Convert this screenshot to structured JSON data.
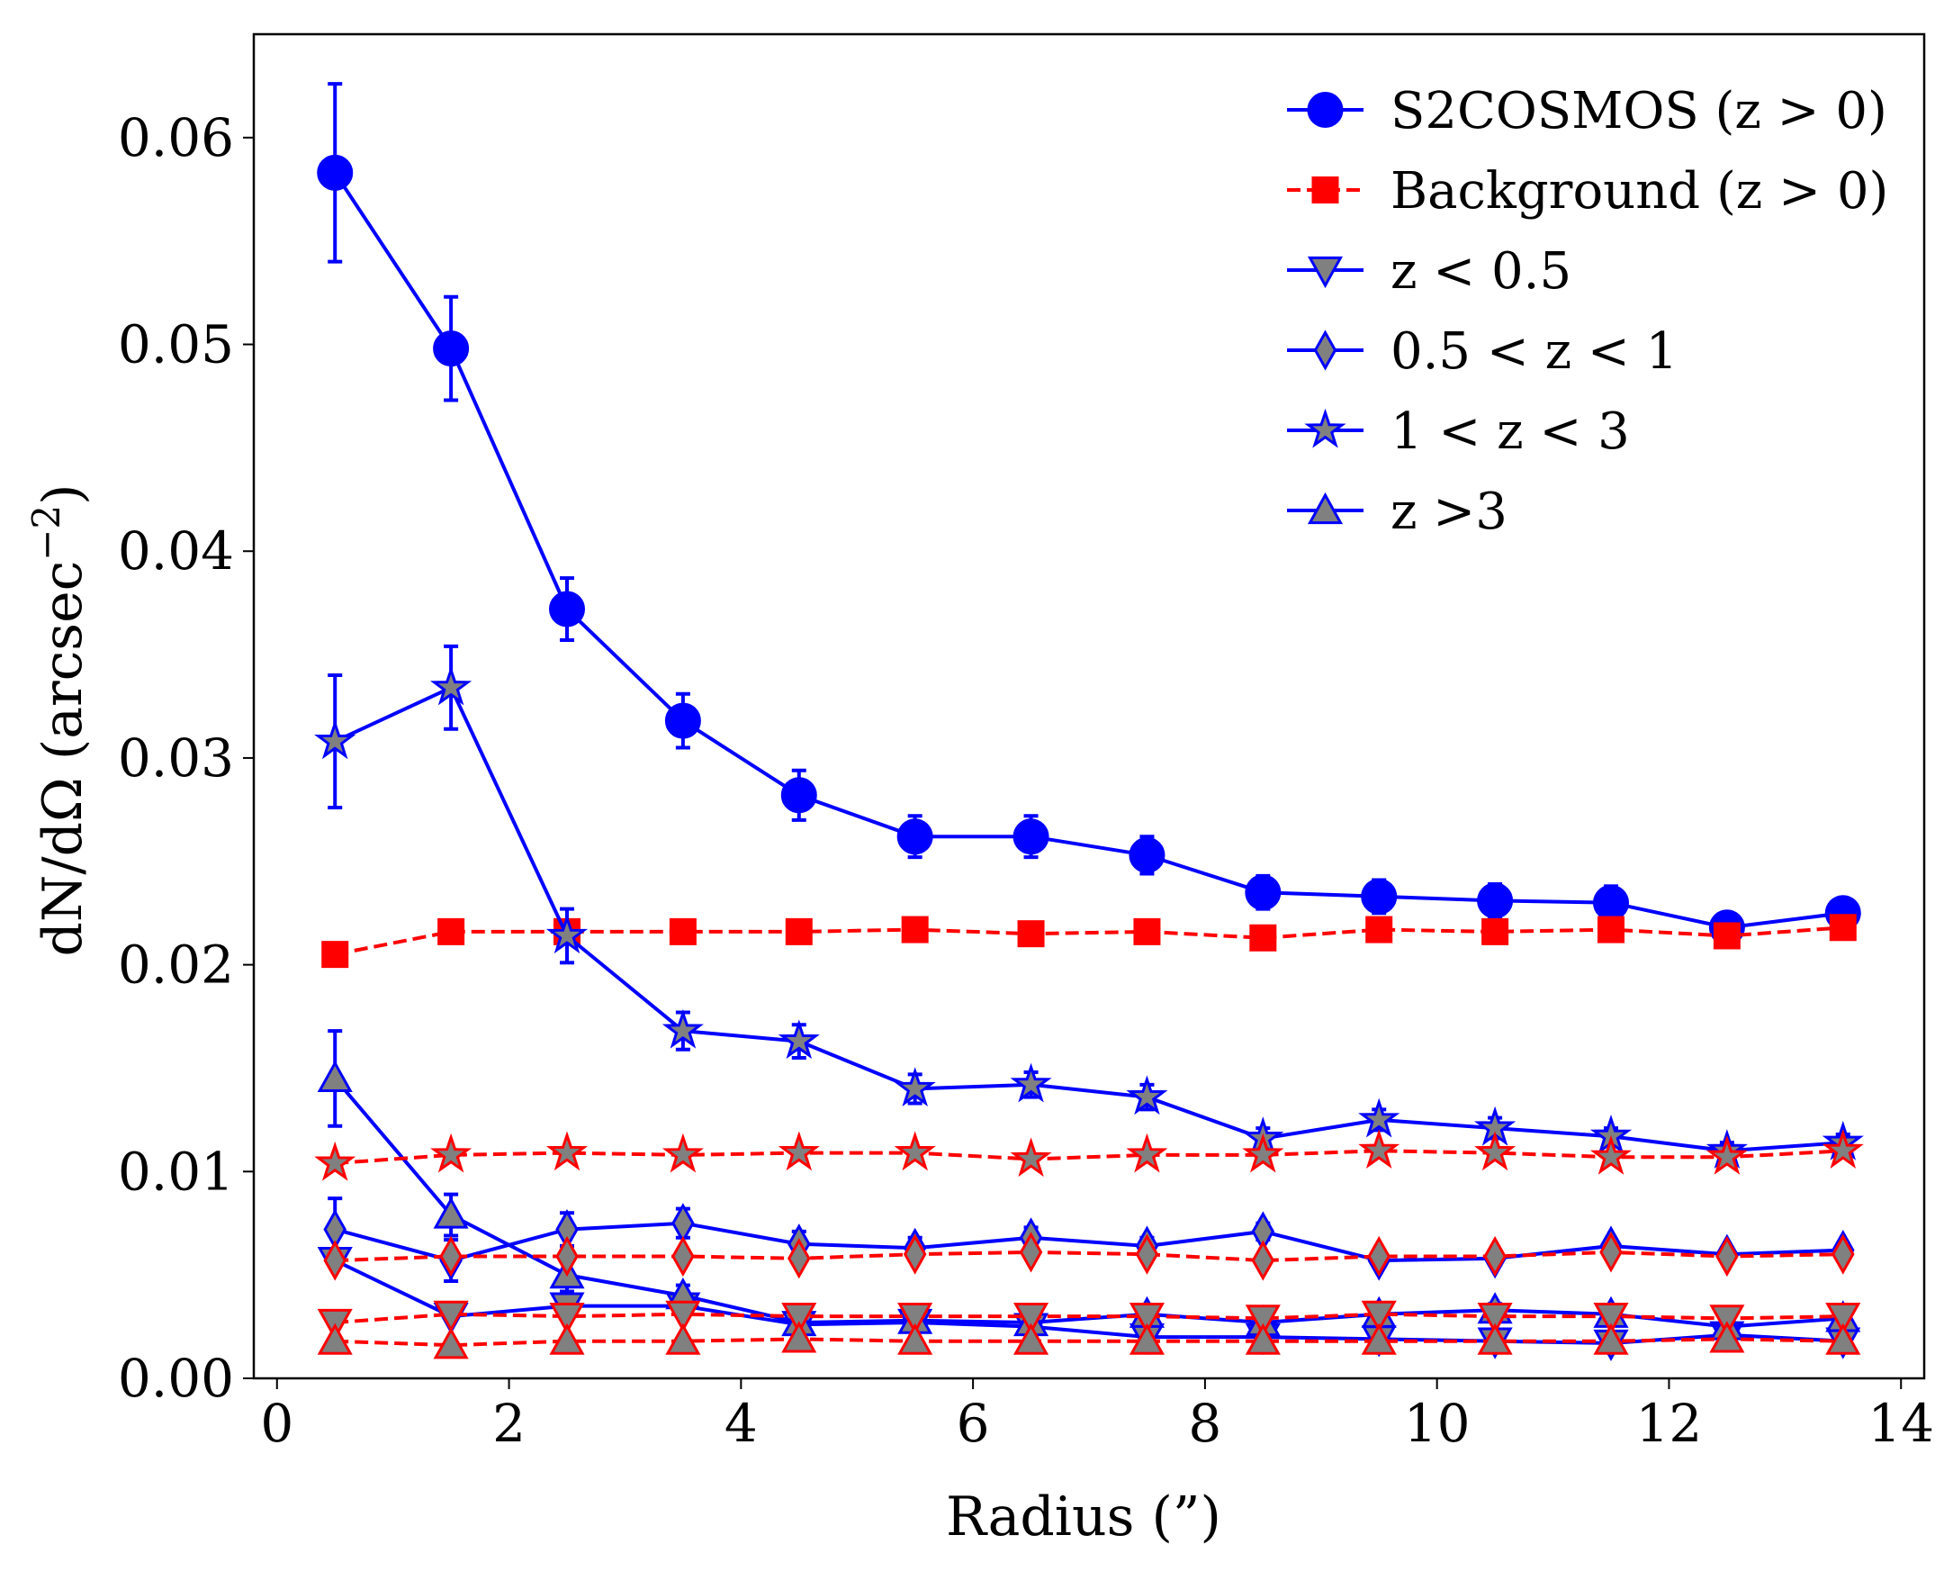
{
  "chart_data": {
    "type": "line",
    "title": "",
    "xlabel": "Radius (”)",
    "ylabel": "dN/dΩ (arcsec",
    "ylabel_exponent": "−2",
    "ylabel_close": ")",
    "xlim": [
      -0.2,
      14.2
    ],
    "ylim": [
      0.0,
      0.065
    ],
    "x_ticks": [
      0,
      2,
      4,
      6,
      8,
      10,
      12,
      14
    ],
    "x_tick_labels": [
      "0",
      "2",
      "4",
      "6",
      "8",
      "10",
      "12",
      "14"
    ],
    "y_ticks": [
      0.0,
      0.01,
      0.02,
      0.03,
      0.04,
      0.05,
      0.06
    ],
    "y_tick_labels": [
      "0.00",
      "0.01",
      "0.02",
      "0.03",
      "0.04",
      "0.05",
      "0.06"
    ],
    "grid": false,
    "legend_position": "top-right",
    "x": [
      0.5,
      1.5,
      2.5,
      3.5,
      4.5,
      5.5,
      6.5,
      7.5,
      8.5,
      9.5,
      10.5,
      11.5,
      12.5,
      13.5
    ],
    "colors": {
      "blue": "#0000ff",
      "red": "#ff0000",
      "gray": "#808080"
    },
    "series": [
      {
        "name": "S2COSMOS (z > 0)",
        "legend": true,
        "color": "#0000ff",
        "linestyle": "solid",
        "marker": "circle",
        "marker_fill": "#0000ff",
        "values": [
          0.0583,
          0.0498,
          0.0372,
          0.0318,
          0.0282,
          0.0262,
          0.0262,
          0.0253,
          0.0235,
          0.0233,
          0.0231,
          0.023,
          0.0218,
          0.0225
        ],
        "errors": [
          0.0043,
          0.0025,
          0.0015,
          0.0013,
          0.0012,
          0.001,
          0.001,
          0.0009,
          0.0008,
          0.0008,
          0.0008,
          0.0008,
          0.0007,
          0.0007
        ]
      },
      {
        "name": "Background (z > 0)",
        "legend": true,
        "color": "#ff0000",
        "linestyle": "dashed",
        "marker": "square",
        "marker_fill": "#ff0000",
        "values": [
          0.0205,
          0.0216,
          0.0216,
          0.0216,
          0.0216,
          0.0217,
          0.0215,
          0.0216,
          0.0213,
          0.0217,
          0.0216,
          0.0217,
          0.0214,
          0.0218
        ]
      },
      {
        "name": "z < 0.5",
        "legend": true,
        "color": "#0000ff",
        "linestyle": "solid",
        "marker": "triangle-down",
        "marker_fill": "#808080",
        "values": [
          0.0057,
          0.003,
          0.0035,
          0.0035,
          0.0026,
          0.0027,
          0.0025,
          0.002,
          0.002,
          0.0019,
          0.0018,
          0.0017,
          0.0021,
          0.0018
        ]
      },
      {
        "name": "0.5 < z < 1",
        "legend": true,
        "color": "#0000ff",
        "linestyle": "solid",
        "marker": "diamond",
        "marker_fill": "#808080",
        "values": [
          0.0072,
          0.0057,
          0.0072,
          0.0075,
          0.0065,
          0.0063,
          0.0068,
          0.0064,
          0.0071,
          0.0057,
          0.0058,
          0.0064,
          0.006,
          0.0062
        ],
        "errors": [
          0.0015,
          0.001,
          0.0008,
          0.0007,
          0.0006,
          0.0005,
          0.0005,
          0.0004,
          0.0004,
          0.0003,
          0.0003,
          0.0003,
          0.0003,
          0.0003
        ]
      },
      {
        "name": "1 < z < 3",
        "legend": true,
        "color": "#0000ff",
        "linestyle": "solid",
        "marker": "star",
        "marker_fill": "#808080",
        "values": [
          0.0308,
          0.0334,
          0.0214,
          0.0168,
          0.0163,
          0.014,
          0.0142,
          0.0136,
          0.0116,
          0.0125,
          0.0121,
          0.0117,
          0.011,
          0.0114
        ],
        "errors": [
          0.0032,
          0.002,
          0.0013,
          0.0009,
          0.0008,
          0.0007,
          0.0006,
          0.0006,
          0.0005,
          0.0005,
          0.0005,
          0.0004,
          0.0004,
          0.0004
        ]
      },
      {
        "name": "z >3",
        "legend": true,
        "color": "#0000ff",
        "linestyle": "solid",
        "marker": "triangle-up",
        "marker_fill": "#808080",
        "values": [
          0.0145,
          0.0079,
          0.005,
          0.004,
          0.0027,
          0.0028,
          0.0027,
          0.0031,
          0.0027,
          0.0031,
          0.0033,
          0.0031,
          0.0025,
          0.0029
        ],
        "errors": [
          0.0023,
          0.001,
          0.0008,
          0.0005,
          0.0004,
          0.0004,
          0.0003,
          0.0003,
          0.0003,
          0.0003,
          0.0003,
          0.0003,
          0.0002,
          0.0002
        ]
      },
      {
        "name": "Background 1 < z < 3",
        "legend": false,
        "color": "#ff0000",
        "linestyle": "dashed",
        "marker": "star",
        "marker_fill": "#808080",
        "values": [
          0.0104,
          0.0108,
          0.0109,
          0.0108,
          0.0109,
          0.0109,
          0.0106,
          0.0108,
          0.0108,
          0.011,
          0.0109,
          0.0107,
          0.0107,
          0.011
        ]
      },
      {
        "name": "Background 0.5 < z < 1",
        "legend": false,
        "color": "#ff0000",
        "linestyle": "dashed",
        "marker": "diamond",
        "marker_fill": "#808080",
        "values": [
          0.0057,
          0.0059,
          0.0059,
          0.0059,
          0.0058,
          0.006,
          0.0061,
          0.006,
          0.0057,
          0.0059,
          0.0059,
          0.0061,
          0.0059,
          0.006
        ]
      },
      {
        "name": "Background z < 0.5",
        "legend": false,
        "color": "#ff0000",
        "linestyle": "dashed",
        "marker": "triangle-down",
        "marker_fill": "#808080",
        "values": [
          0.0027,
          0.0031,
          0.003,
          0.0031,
          0.003,
          0.003,
          0.003,
          0.003,
          0.0029,
          0.0031,
          0.003,
          0.003,
          0.0029,
          0.003
        ]
      },
      {
        "name": "Background z >3",
        "legend": false,
        "color": "#ff0000",
        "linestyle": "dashed",
        "marker": "triangle-up",
        "marker_fill": "#808080",
        "values": [
          0.0018,
          0.0016,
          0.0018,
          0.0018,
          0.0019,
          0.0018,
          0.0018,
          0.0018,
          0.0018,
          0.0018,
          0.0018,
          0.0018,
          0.0019,
          0.0018
        ]
      }
    ]
  }
}
